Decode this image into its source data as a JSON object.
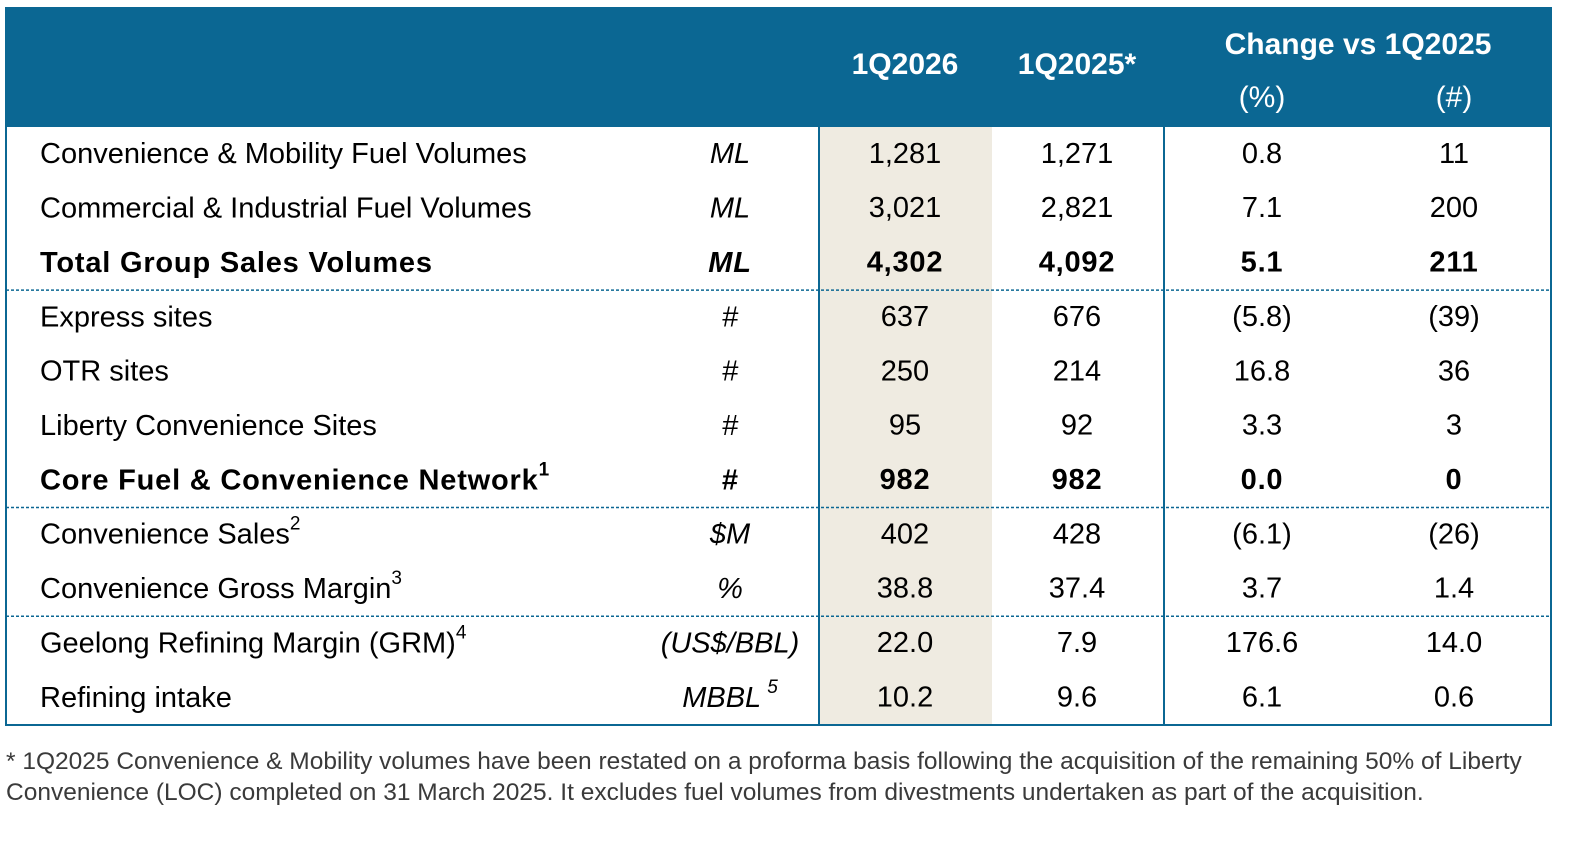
{
  "header": {
    "columns": [
      "1Q2026",
      "1Q2025*"
    ],
    "change_title": "Change vs 1Q2025",
    "change_columns": [
      "(%)",
      "(#)"
    ]
  },
  "sections": [
    {
      "rows": [
        {
          "label": "Convenience & Mobility Fuel Volumes",
          "unit": "ML",
          "values": [
            "1,281",
            "1,271",
            "0.8",
            "11"
          ]
        },
        {
          "label": "Commercial & Industrial Fuel Volumes",
          "unit": "ML",
          "values": [
            "3,021",
            "2,821",
            "7.1",
            "200"
          ]
        },
        {
          "label": "Total Group Sales Volumes",
          "unit": "ML",
          "values": [
            "4,302",
            "4,092",
            "5.1",
            "211"
          ],
          "bold": true
        }
      ]
    },
    {
      "rows": [
        {
          "label": "Express sites",
          "unit": "#",
          "values": [
            "637",
            "676",
            "(5.8)",
            "(39)"
          ]
        },
        {
          "label": "OTR sites",
          "unit": "#",
          "values": [
            "250",
            "214",
            "16.8",
            "36"
          ]
        },
        {
          "label": "Liberty Convenience Sites",
          "unit": "#",
          "values": [
            "95",
            "92",
            "3.3",
            "3"
          ]
        },
        {
          "label": "Core Fuel & Convenience Network",
          "note": "1",
          "unit": "#",
          "values": [
            "982",
            "982",
            "0.0",
            "0"
          ],
          "bold": true
        }
      ]
    },
    {
      "rows": [
        {
          "label": "Convenience Sales",
          "note": "2",
          "unit": "$M",
          "values": [
            "402",
            "428",
            "(6.1)",
            "(26)"
          ]
        },
        {
          "label": "Convenience Gross Margin",
          "note": "3",
          "unit": "%",
          "values": [
            "38.8",
            "37.4",
            "3.7",
            "1.4"
          ]
        }
      ]
    },
    {
      "rows": [
        {
          "label": "Geelong Refining Margin (GRM)",
          "note": "4",
          "unit": "(US$/BBL)",
          "values": [
            "22.0",
            "7.9",
            "176.6",
            "14.0"
          ]
        },
        {
          "label": "Refining intake",
          "unit": "MBBL",
          "unit_note": "5",
          "values": [
            "10.2",
            "9.6",
            "6.1",
            "0.6"
          ]
        }
      ]
    }
  ],
  "footnote": "* 1Q2025 Convenience & Mobility volumes have been restated on a proforma basis following the acquisition of the remaining 50% of Liberty Convenience (LOC) completed on 31 March 2025. It excludes fuel volumes from divestments undertaken as part of the acquisition."
}
